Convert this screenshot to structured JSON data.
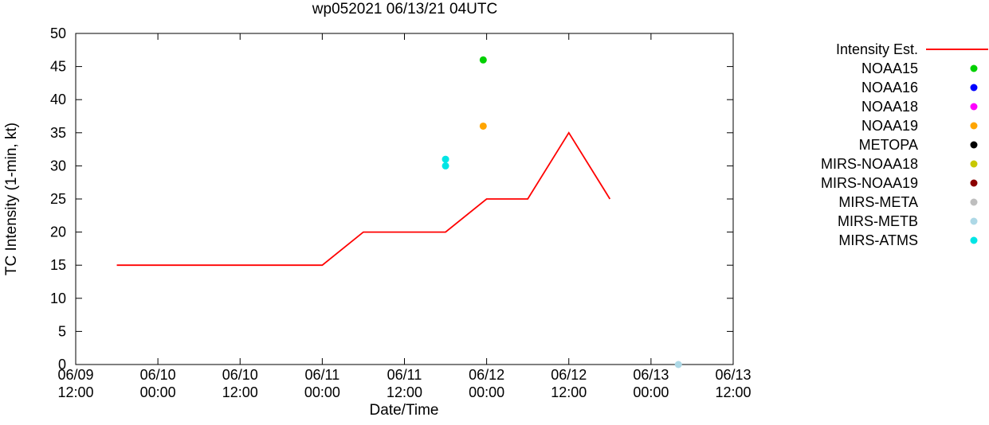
{
  "chart_data": {
    "type": "line",
    "title": "wp052021 06/13/21 04UTC",
    "xlabel": "Date/Time",
    "ylabel": "TC Intensity (1-min, kt)",
    "ylim": [
      0,
      50
    ],
    "ytick_step": 5,
    "x_axis_hours": [
      0,
      96
    ],
    "x_ticks": [
      {
        "hours": 0,
        "date": "06/09",
        "time": "12:00"
      },
      {
        "hours": 12,
        "date": "06/10",
        "time": "00:00"
      },
      {
        "hours": 24,
        "date": "06/10",
        "time": "12:00"
      },
      {
        "hours": 36,
        "date": "06/11",
        "time": "00:00"
      },
      {
        "hours": 48,
        "date": "06/11",
        "time": "12:00"
      },
      {
        "hours": 60,
        "date": "06/12",
        "time": "00:00"
      },
      {
        "hours": 72,
        "date": "06/12",
        "time": "12:00"
      },
      {
        "hours": 84,
        "date": "06/13",
        "time": "00:00"
      },
      {
        "hours": 96,
        "date": "06/13",
        "time": "12:00"
      }
    ],
    "grid": false,
    "legend_position": "right-outside",
    "series": [
      {
        "name": "Intensity Est.",
        "style": "line",
        "color": "#ff0000",
        "points": [
          [
            6,
            15
          ],
          [
            36,
            15
          ],
          [
            42,
            20
          ],
          [
            54,
            20
          ],
          [
            60,
            25
          ],
          [
            66,
            25
          ],
          [
            72,
            35
          ],
          [
            78,
            25
          ]
        ]
      },
      {
        "name": "NOAA15",
        "style": "dot",
        "color": "#00d000",
        "points": [
          [
            59.5,
            46
          ]
        ]
      },
      {
        "name": "NOAA16",
        "style": "dot",
        "color": "#0000ff",
        "points": []
      },
      {
        "name": "NOAA18",
        "style": "dot",
        "color": "#ff00ff",
        "points": []
      },
      {
        "name": "NOAA19",
        "style": "dot",
        "color": "#ffa500",
        "points": [
          [
            59.5,
            36
          ]
        ]
      },
      {
        "name": "METOPA",
        "style": "dot",
        "color": "#000000",
        "points": []
      },
      {
        "name": "MIRS-NOAA18",
        "style": "dot",
        "color": "#c8c800",
        "points": []
      },
      {
        "name": "MIRS-NOAA19",
        "style": "dot",
        "color": "#8b0000",
        "points": []
      },
      {
        "name": "MIRS-META",
        "style": "dot",
        "color": "#bebebe",
        "points": []
      },
      {
        "name": "MIRS-METB",
        "style": "dot",
        "color": "#add8e6",
        "points": [
          [
            88,
            0
          ]
        ]
      },
      {
        "name": "MIRS-ATMS",
        "style": "dot",
        "color": "#00e5e5",
        "points": [
          [
            54,
            31
          ],
          [
            54,
            30
          ]
        ]
      }
    ]
  }
}
